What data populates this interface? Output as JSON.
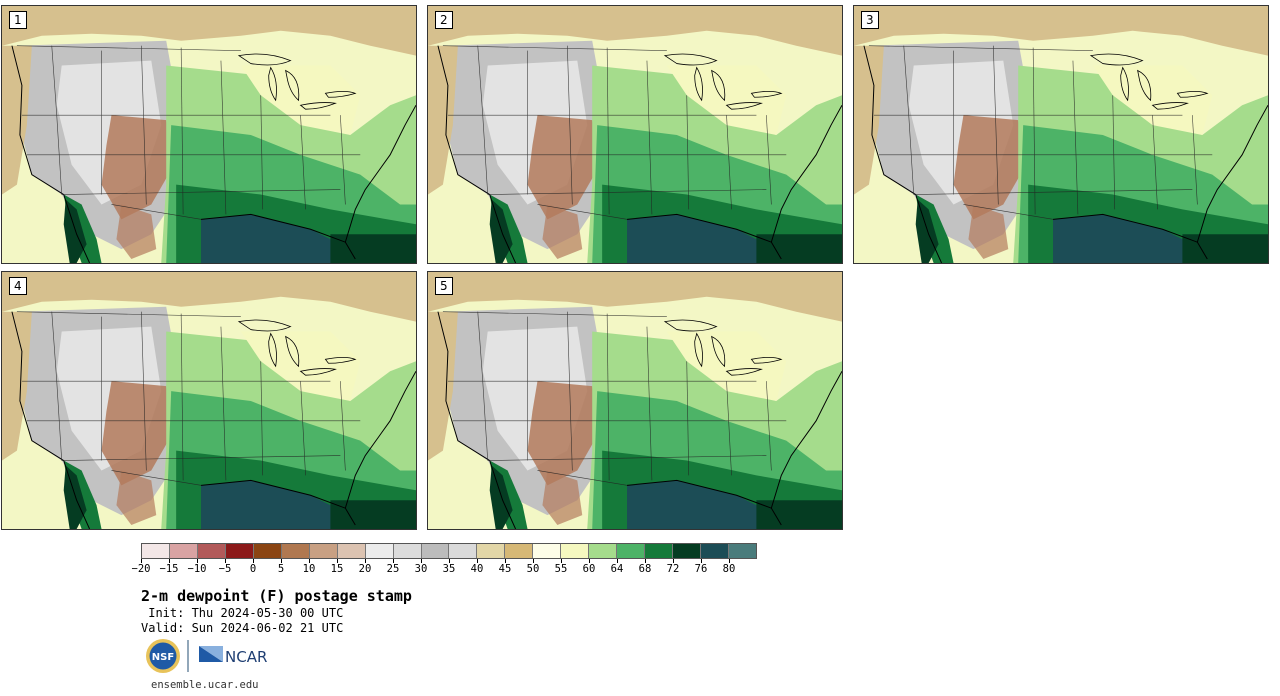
{
  "panels": [
    {
      "label": "1"
    },
    {
      "label": "2"
    },
    {
      "label": "3"
    },
    {
      "label": "4"
    },
    {
      "label": "5"
    }
  ],
  "colorbar": {
    "colors": [
      "#f3e7e7",
      "#d9a3a3",
      "#b25a5a",
      "#8c1a1a",
      "#8b4513",
      "#b07850",
      "#c8a083",
      "#dcc3b1",
      "#ececec",
      "#dcdcdc",
      "#bcbcbc",
      "#dadada",
      "#e2d6a7",
      "#d6b876",
      "#fdfde8",
      "#f5f8c0",
      "#a5dc8c",
      "#4db367",
      "#157a3a",
      "#053c22",
      "#1c4d56",
      "#4a7c7c"
    ],
    "tick_labels": [
      "−20",
      "−15",
      "−10",
      "−5",
      "0",
      "5",
      "10",
      "15",
      "20",
      "25",
      "30",
      "35",
      "40",
      "45",
      "50",
      "55",
      "60",
      "64",
      "68",
      "72",
      "76",
      "80"
    ]
  },
  "title": "2-m dewpoint (F) postage stamp",
  "init": " Init: Thu 2024-05-30 00 UTC",
  "valid": "Valid: Sun 2024-06-02 21 UTC",
  "logos": {
    "nsf_text": "NSF",
    "ncar_text": "NCAR"
  },
  "footer": "ensemble.ucar.edu",
  "map_colors": {
    "dry_tan": "#d6c08e",
    "gray": "#c2c2c2",
    "light_gray": "#e3e3e3",
    "brown": "#b37a5c",
    "pale_yellow": "#f5f8c0",
    "light_green": "#a5dc8c",
    "green": "#4db367",
    "dark_green": "#157a3a",
    "darkest_green": "#053c22",
    "ocean_teal": "#1c4d56"
  }
}
